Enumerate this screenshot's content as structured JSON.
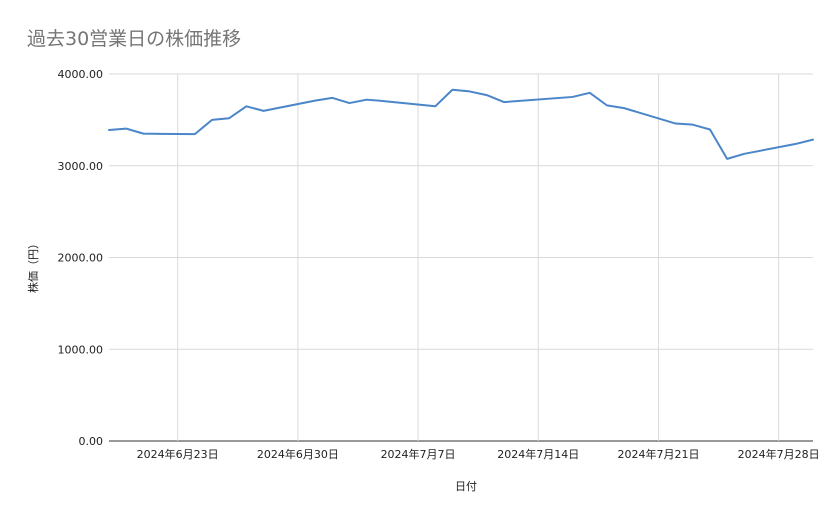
{
  "chart_data": {
    "type": "line",
    "title": "過去30営業日の株価推移",
    "xlabel": "日付",
    "ylabel": "株価（円）",
    "ylim": [
      0,
      4000
    ],
    "yticks": [
      "0.00",
      "1000.00",
      "2000.00",
      "3000.00",
      "4000.00"
    ],
    "xticks": [
      {
        "date": "2024-06-23",
        "label": "2024年6月23日"
      },
      {
        "date": "2024-06-30",
        "label": "2024年6月30日"
      },
      {
        "date": "2024-07-07",
        "label": "2024年7月7日"
      },
      {
        "date": "2024-07-14",
        "label": "2024年7月14日"
      },
      {
        "date": "2024-07-21",
        "label": "2024年7月21日"
      },
      {
        "date": "2024-07-28",
        "label": "2024年7月28日"
      }
    ],
    "xlim": [
      "2024-06-19",
      "2024-07-30"
    ],
    "grid": true,
    "color": "#4a86c8",
    "series": [
      {
        "x": [
          "2024-06-19",
          "2024-06-20",
          "2024-06-21",
          "2024-06-22",
          "2024-06-23",
          "2024-06-24",
          "2024-06-25",
          "2024-06-26",
          "2024-06-27",
          "2024-06-28",
          "2024-07-01",
          "2024-07-02",
          "2024-07-03",
          "2024-07-04",
          "2024-07-05",
          "2024-07-08",
          "2024-07-09",
          "2024-07-10",
          "2024-07-11",
          "2024-07-12",
          "2024-07-16",
          "2024-07-17",
          "2024-07-18",
          "2024-07-19",
          "2024-07-22",
          "2024-07-23",
          "2024-07-24",
          "2024-07-25",
          "2024-07-26",
          "2024-07-29",
          "2024-07-30"
        ],
        "values": [
          3390,
          3405,
          3350,
          3348,
          3346,
          3345,
          3500,
          3518,
          3648,
          3598,
          3710,
          3740,
          3683,
          3720,
          3705,
          3648,
          3828,
          3810,
          3770,
          3694,
          3750,
          3795,
          3658,
          3628,
          3460,
          3448,
          3395,
          3075,
          3130,
          3238,
          3285
        ]
      }
    ]
  }
}
